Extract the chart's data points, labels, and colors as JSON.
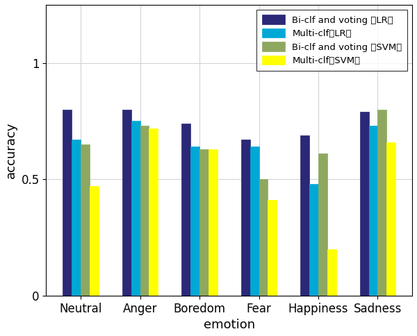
{
  "categories": [
    "Neutral",
    "Anger",
    "Boredom",
    "Fear",
    "Happiness",
    "Sadness"
  ],
  "series_values": [
    [
      0.8,
      0.8,
      0.74,
      0.67,
      0.69,
      0.79
    ],
    [
      0.67,
      0.75,
      0.64,
      0.64,
      0.48,
      0.73
    ],
    [
      0.65,
      0.73,
      0.63,
      0.5,
      0.61,
      0.8
    ],
    [
      0.47,
      0.72,
      0.63,
      0.41,
      0.2,
      0.66
    ]
  ],
  "colors": [
    "#2a2877",
    "#00a8d6",
    "#8fa860",
    "#ffff00"
  ],
  "legend_labels": [
    "Bi-clf and voting （LR）",
    "Multi-clf（LR）",
    "Bi-clf and voting （SVM）",
    "Multi-clf（SVM）"
  ],
  "xlabel": "emotion",
  "ylabel": "accuracy",
  "ylim": [
    0,
    1.25
  ],
  "yticks": [
    0,
    0.5,
    1
  ],
  "yticklabels": [
    "0",
    "0.5",
    "1"
  ],
  "bar_width": 0.15,
  "figsize": [
    6.0,
    4.84
  ],
  "dpi": 100
}
